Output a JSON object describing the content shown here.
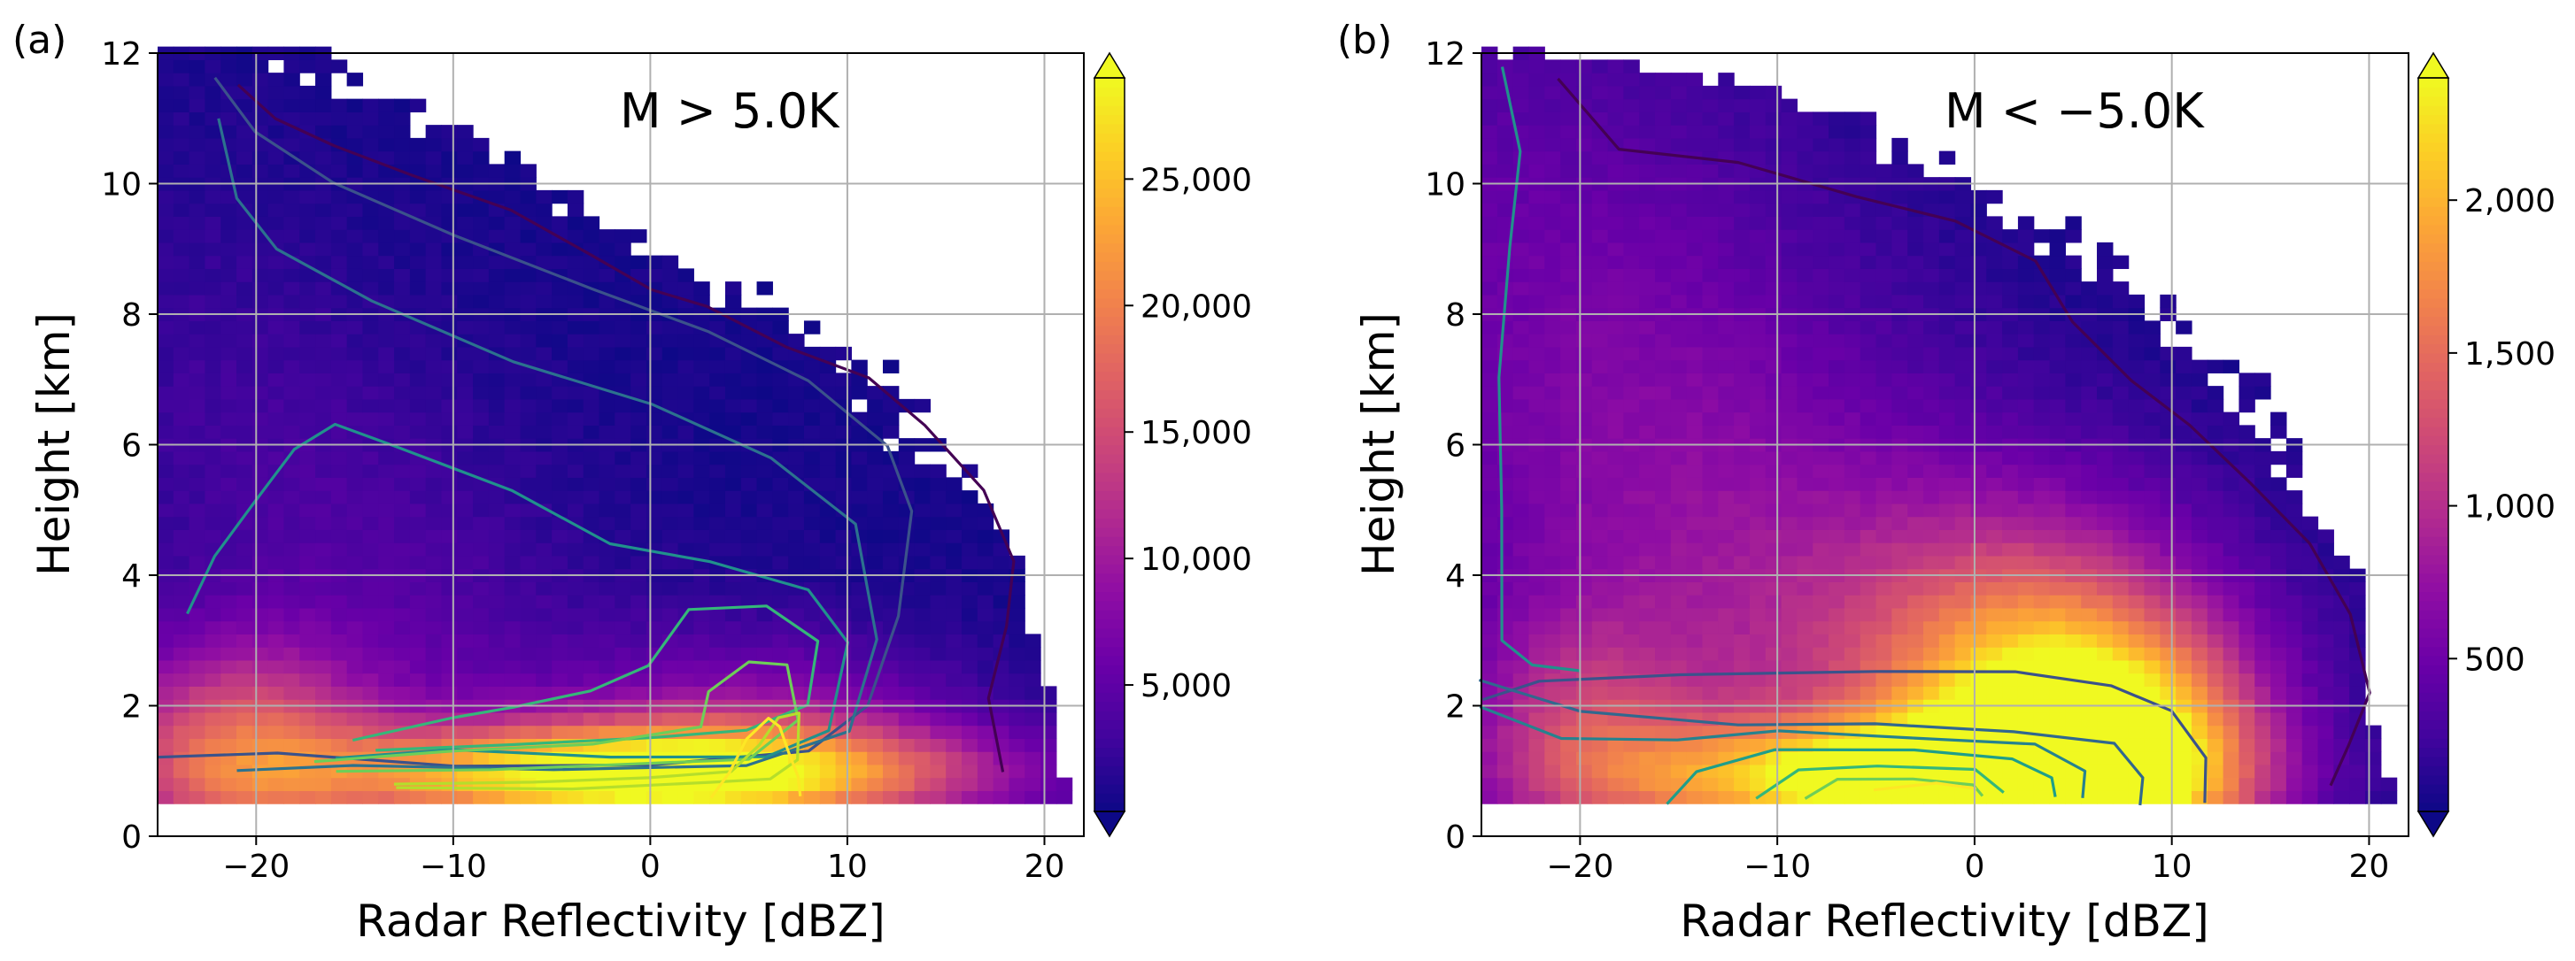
{
  "chart_data": [
    {
      "type": "heatmap",
      "panel_label": "(a)",
      "annotation": "M > 5.0K",
      "xlabel": "Radar Reflectivity [dBZ]",
      "ylabel": "Height [km]",
      "xlim": [
        -25,
        22
      ],
      "ylim": [
        0,
        12
      ],
      "x_ticks": [
        -20,
        -10,
        0,
        10,
        20
      ],
      "x_tick_labels": [
        "−20",
        "−10",
        "0",
        "10",
        "20"
      ],
      "y_ticks": [
        0,
        2,
        4,
        6,
        8,
        10,
        12
      ],
      "y_tick_labels": [
        "0",
        "2",
        "4",
        "6",
        "8",
        "10",
        "12"
      ],
      "grid": true,
      "colormap": "plasma",
      "colorbar": {
        "min": 0,
        "max": 29000,
        "extend": "both",
        "ticks": [
          5000,
          10000,
          15000,
          20000,
          25000
        ],
        "tick_labels": [
          "5,000",
          "10,000",
          "15,000",
          "20,000",
          "25,000"
        ]
      },
      "data_extent": {
        "height_min": 0.5,
        "height_max": 12
      },
      "edge_profile": [
        [
          0.5,
          21.5
        ],
        [
          1,
          21
        ],
        [
          2,
          20.5
        ],
        [
          3,
          19.5
        ],
        [
          4,
          19
        ],
        [
          5,
          17.5
        ],
        [
          6,
          14
        ],
        [
          7,
          11.5
        ],
        [
          8,
          6
        ],
        [
          9,
          0
        ],
        [
          10,
          -5
        ],
        [
          11,
          -12
        ],
        [
          12,
          -18
        ]
      ],
      "upper_profile": [
        [
          0.5,
          19.5
        ],
        [
          1,
          19
        ],
        [
          2,
          18.5
        ],
        [
          3,
          18
        ],
        [
          4,
          18
        ],
        [
          5,
          17.5
        ],
        [
          6,
          14.5
        ],
        [
          7,
          11
        ],
        [
          8,
          6.5
        ],
        [
          9,
          1
        ],
        [
          10,
          -5
        ],
        [
          11,
          -13
        ],
        [
          12,
          -20
        ]
      ],
      "hot_spots": [
        {
          "x": 0,
          "y": 0.95,
          "sx": 11,
          "sy": 0.55,
          "a": 1.0
        },
        {
          "x": -21,
          "y": 1.3,
          "sx": 5,
          "sy": 1.2,
          "a": 0.55
        },
        {
          "x": 6,
          "y": 1.7,
          "sx": 7,
          "sy": 1.0,
          "a": 0.25
        }
      ],
      "plume": {
        "x0": -8,
        "slope": 0.2,
        "sy": 2.2,
        "sx": 8,
        "a": 0.12
      },
      "contours": [
        {
          "color": "#3b528b",
          "points": [
            [
              -25,
              1.2
            ],
            [
              -19,
              1.3
            ],
            [
              -10,
              1.1
            ],
            [
              0,
              1.1
            ],
            [
              8,
              1.3
            ],
            [
              11,
              2.0
            ],
            [
              12.5,
              3.4
            ],
            [
              13.2,
              5.0
            ],
            [
              12,
              6.0
            ],
            [
              8,
              7.0
            ],
            [
              3,
              7.7
            ],
            [
              -3,
              8.4
            ],
            [
              -10,
              9.2
            ],
            [
              -16,
              10.0
            ],
            [
              -20,
              10.8
            ],
            [
              -22,
              11.6
            ]
          ]
        },
        {
          "color": "#2c728e",
          "points": [
            [
              -21,
              1.0
            ],
            [
              -15,
              1.1
            ],
            [
              -5,
              1.0
            ],
            [
              5,
              1.1
            ],
            [
              10,
              1.6
            ],
            [
              11.5,
              3.0
            ],
            [
              10.5,
              4.8
            ],
            [
              6,
              5.8
            ],
            [
              0,
              6.6
            ],
            [
              -7,
              7.3
            ],
            [
              -14,
              8.2
            ],
            [
              -19,
              9.0
            ],
            [
              -21,
              9.8
            ],
            [
              -22,
              11.0
            ]
          ]
        },
        {
          "color": "#21918c",
          "points": [
            [
              -16,
              1.2
            ],
            [
              -10,
              1.3
            ],
            [
              -2,
              1.2
            ],
            [
              6,
              1.2
            ],
            [
              9,
              1.6
            ],
            [
              10,
              3.0
            ],
            [
              8,
              3.8
            ],
            [
              3,
              4.2
            ],
            [
              -2,
              4.5
            ],
            [
              -7,
              5.3
            ],
            [
              -13,
              6.0
            ],
            [
              -16,
              6.3
            ],
            [
              -18,
              5.9
            ],
            [
              -20,
              5.1
            ],
            [
              -22,
              4.3
            ],
            [
              -23.5,
              3.4
            ]
          ]
        },
        {
          "color": "#35b779",
          "points": [
            [
              -14,
              1.3
            ],
            [
              -7,
              1.4
            ],
            [
              0,
              1.5
            ],
            [
              5,
              1.6
            ],
            [
              8,
              2.0
            ],
            [
              8.5,
              3.0
            ],
            [
              6,
              3.5
            ],
            [
              2,
              3.5
            ],
            [
              0,
              2.6
            ],
            [
              -3,
              2.2
            ],
            [
              -7,
              2.0
            ],
            [
              -10,
              1.8
            ],
            [
              -15,
              1.5
            ]
          ]
        },
        {
          "color": "#6ece58",
          "points": [
            [
              -16,
              1.0
            ],
            [
              -8,
              1.0
            ],
            [
              0,
              1.1
            ],
            [
              5,
              1.2
            ],
            [
              7.5,
              1.8
            ],
            [
              7,
              2.6
            ],
            [
              5,
              2.7
            ],
            [
              3,
              2.2
            ],
            [
              2.5,
              1.7
            ],
            [
              -3,
              1.4
            ],
            [
              -10,
              1.3
            ],
            [
              -17,
              1.15
            ]
          ]
        },
        {
          "color": "#b5de2b",
          "points": [
            [
              -13,
              0.8
            ],
            [
              -6,
              0.8
            ],
            [
              0,
              0.9
            ],
            [
              4,
              1.0
            ],
            [
              5.5,
              1.4
            ],
            [
              6.5,
              1.8
            ],
            [
              7.5,
              1.9
            ],
            [
              7.5,
              1.2
            ],
            [
              6,
              0.9
            ],
            [
              3,
              0.8
            ],
            [
              -4,
              0.7
            ],
            [
              -13,
              0.75
            ]
          ]
        },
        {
          "color": "#fde725",
          "points": [
            [
              3,
              0.6
            ],
            [
              4,
              1.0
            ],
            [
              5,
              1.5
            ],
            [
              6,
              1.8
            ],
            [
              6.5,
              1.7
            ],
            [
              7,
              1.3
            ],
            [
              7.5,
              0.9
            ],
            [
              7.5,
              0.6
            ]
          ]
        },
        {
          "color": "#440154",
          "points": [
            [
              -21,
              11.5
            ],
            [
              -19,
              11.0
            ],
            [
              -16,
              10.6
            ],
            [
              -12,
              10.1
            ],
            [
              -7,
              9.6
            ],
            [
              -3,
              8.9
            ],
            [
              0,
              8.4
            ],
            [
              3,
              8.1
            ],
            [
              7,
              7.5
            ],
            [
              11,
              7.0
            ],
            [
              14,
              6.3
            ],
            [
              17,
              5.3
            ],
            [
              18.5,
              4.2
            ],
            [
              18,
              3.2
            ],
            [
              17.2,
              2.1
            ],
            [
              17.8,
              1.0
            ]
          ]
        }
      ]
    },
    {
      "type": "heatmap",
      "panel_label": "(b)",
      "annotation": "M < −5.0K",
      "xlabel": "Radar Reflectivity [dBZ]",
      "ylabel": "Height [km]",
      "xlim": [
        -25,
        22
      ],
      "ylim": [
        0,
        12
      ],
      "x_ticks": [
        -20,
        -10,
        0,
        10,
        20
      ],
      "x_tick_labels": [
        "−20",
        "−10",
        "0",
        "10",
        "20"
      ],
      "y_ticks": [
        0,
        2,
        4,
        6,
        8,
        10,
        12
      ],
      "y_tick_labels": [
        "0",
        "2",
        "4",
        "6",
        "8",
        "10",
        "12"
      ],
      "grid": true,
      "colormap": "plasma",
      "colorbar": {
        "min": 0,
        "max": 2400,
        "extend": "both",
        "ticks": [
          500,
          1000,
          1500,
          2000
        ],
        "tick_labels": [
          "500",
          "1,000",
          "1,500",
          "2,000"
        ]
      },
      "data_extent": {
        "height_min": 0.5,
        "height_max": 12
      },
      "edge_profile": [
        [
          0.5,
          21.5
        ],
        [
          1,
          21
        ],
        [
          2,
          20
        ],
        [
          3,
          20
        ],
        [
          4,
          19.5
        ],
        [
          5,
          17
        ],
        [
          6,
          15
        ],
        [
          7,
          13
        ],
        [
          8,
          9
        ],
        [
          9,
          5
        ],
        [
          10,
          0
        ],
        [
          11,
          -6
        ],
        [
          11.5,
          -10
        ],
        [
          12,
          -23
        ]
      ],
      "upper_profile": [
        [
          0.5,
          18.5
        ],
        [
          1,
          19
        ],
        [
          2,
          20
        ],
        [
          3,
          19
        ],
        [
          4,
          17
        ],
        [
          5,
          14
        ],
        [
          6,
          11
        ],
        [
          7,
          7
        ],
        [
          8,
          2
        ],
        [
          9,
          -4
        ],
        [
          10,
          -10
        ],
        [
          11,
          -17
        ],
        [
          12,
          -23
        ]
      ],
      "hot_spots": [
        {
          "x": 6,
          "y": 1.2,
          "sx": 5.5,
          "sy": 1.3,
          "a": 1.0
        },
        {
          "x": -5,
          "y": 0.9,
          "sx": 9,
          "sy": 0.6,
          "a": 0.75
        },
        {
          "x": 3,
          "y": 2.8,
          "sx": 7,
          "sy": 1.8,
          "a": 0.45
        },
        {
          "x": -20,
          "y": 1.6,
          "sx": 4,
          "sy": 1.2,
          "a": 0.3
        }
      ],
      "plume": {
        "x0": -8,
        "slope": 0.15,
        "sy": 3.2,
        "sx": 11,
        "a": 0.3
      },
      "contours": [
        {
          "color": "#3b528b",
          "points": [
            [
              -25,
              2.1
            ],
            [
              -22,
              2.4
            ],
            [
              -15,
              2.5
            ],
            [
              -5,
              2.55
            ],
            [
              2,
              2.5
            ],
            [
              7,
              2.3
            ],
            [
              10,
              1.9
            ],
            [
              11.8,
              1.2
            ],
            [
              11.7,
              0.5
            ]
          ]
        },
        {
          "color": "#31688e",
          "points": [
            [
              -25,
              2.4
            ],
            [
              -20,
              1.9
            ],
            [
              -12,
              1.7
            ],
            [
              -5,
              1.7
            ],
            [
              2,
              1.6
            ],
            [
              7,
              1.4
            ],
            [
              8.5,
              0.9
            ],
            [
              8.5,
              0.5
            ]
          ]
        },
        {
          "color": "#26828e",
          "points": [
            [
              -25,
              2.0
            ],
            [
              -21,
              1.5
            ],
            [
              -15,
              1.5
            ],
            [
              -10,
              1.6
            ],
            [
              -3,
              1.5
            ],
            [
              3,
              1.4
            ],
            [
              5.5,
              1.0
            ],
            [
              5.5,
              0.6
            ]
          ]
        },
        {
          "color": "#1f9e89",
          "points": [
            [
              -15.5,
              0.5
            ],
            [
              -14,
              1.0
            ],
            [
              -10,
              1.3
            ],
            [
              -3,
              1.3
            ],
            [
              2,
              1.2
            ],
            [
              4,
              0.9
            ],
            [
              4,
              0.6
            ]
          ]
        },
        {
          "color": "#35b779",
          "points": [
            [
              -11,
              0.6
            ],
            [
              -9,
              1.0
            ],
            [
              -5,
              1.1
            ],
            [
              0,
              1.0
            ],
            [
              1.5,
              0.7
            ]
          ]
        },
        {
          "color": "#6ece58",
          "points": [
            [
              -8.5,
              0.6
            ],
            [
              -7,
              0.85
            ],
            [
              -3,
              0.9
            ],
            [
              0,
              0.8
            ],
            [
              0.5,
              0.6
            ]
          ]
        },
        {
          "color": "#fde725",
          "points": [
            [
              -5,
              0.7
            ],
            [
              -2,
              0.8
            ],
            [
              0,
              0.75
            ]
          ]
        },
        {
          "color": "#21918c",
          "points": [
            [
              -24,
              11.8
            ],
            [
              -23,
              10.5
            ],
            [
              -23.5,
              9
            ],
            [
              -24,
              7
            ],
            [
              -24,
              5
            ],
            [
              -24,
              3
            ],
            [
              -22.5,
              2.6
            ],
            [
              -20,
              2.55
            ]
          ]
        },
        {
          "color": "#440154",
          "points": [
            [
              -21,
              11.6
            ],
            [
              -18,
              10.5
            ],
            [
              -12,
              10.3
            ],
            [
              -6,
              9.8
            ],
            [
              -1,
              9.4
            ],
            [
              3,
              8.8
            ],
            [
              5,
              7.9
            ],
            [
              8,
              7.0
            ],
            [
              11,
              6.3
            ],
            [
              14,
              5.4
            ],
            [
              17,
              4.5
            ],
            [
              19,
              3.4
            ],
            [
              20,
              2.2
            ],
            [
              19,
              1.4
            ],
            [
              18,
              0.8
            ]
          ]
        }
      ]
    }
  ]
}
